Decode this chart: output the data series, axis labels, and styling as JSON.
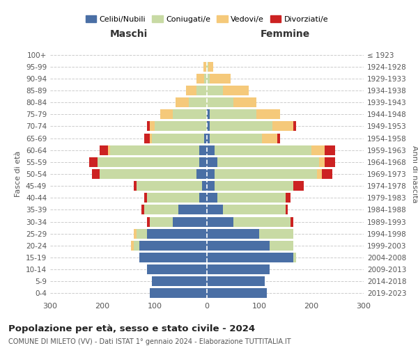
{
  "age_groups": [
    "0-4",
    "5-9",
    "10-14",
    "15-19",
    "20-24",
    "25-29",
    "30-34",
    "35-39",
    "40-44",
    "45-49",
    "50-54",
    "55-59",
    "60-64",
    "65-69",
    "70-74",
    "75-79",
    "80-84",
    "85-89",
    "90-94",
    "95-99",
    "100+"
  ],
  "birth_years": [
    "2019-2023",
    "2014-2018",
    "2009-2013",
    "2004-2008",
    "1999-2003",
    "1994-1998",
    "1989-1993",
    "1984-1988",
    "1979-1983",
    "1974-1978",
    "1969-1973",
    "1964-1968",
    "1959-1963",
    "1954-1958",
    "1949-1953",
    "1944-1948",
    "1939-1943",
    "1934-1938",
    "1929-1933",
    "1924-1928",
    "≤ 1923"
  ],
  "males": {
    "celibe": [
      110,
      105,
      115,
      130,
      130,
      115,
      65,
      55,
      15,
      10,
      20,
      15,
      15,
      5,
      0,
      0,
      0,
      0,
      0,
      0,
      0
    ],
    "coniugato": [
      0,
      0,
      0,
      0,
      10,
      20,
      45,
      65,
      100,
      125,
      185,
      195,
      170,
      100,
      100,
      65,
      35,
      20,
      5,
      2,
      0
    ],
    "vedovo": [
      0,
      0,
      0,
      0,
      5,
      5,
      0,
      0,
      0,
      0,
      0,
      0,
      5,
      5,
      10,
      25,
      25,
      20,
      15,
      5,
      0
    ],
    "divorziato": [
      0,
      0,
      0,
      0,
      0,
      0,
      5,
      5,
      5,
      5,
      15,
      15,
      15,
      10,
      5,
      0,
      0,
      0,
      0,
      0,
      0
    ]
  },
  "females": {
    "nubile": [
      115,
      110,
      120,
      165,
      120,
      100,
      50,
      30,
      20,
      15,
      15,
      20,
      15,
      5,
      5,
      5,
      0,
      0,
      0,
      0,
      0
    ],
    "coniugata": [
      0,
      0,
      0,
      5,
      45,
      65,
      110,
      120,
      130,
      150,
      195,
      195,
      185,
      100,
      120,
      90,
      50,
      30,
      5,
      2,
      0
    ],
    "vedova": [
      0,
      0,
      0,
      0,
      0,
      0,
      0,
      0,
      0,
      0,
      10,
      10,
      25,
      30,
      40,
      45,
      45,
      50,
      40,
      10,
      0
    ],
    "divorziata": [
      0,
      0,
      0,
      0,
      0,
      0,
      5,
      5,
      10,
      20,
      20,
      20,
      20,
      5,
      5,
      0,
      0,
      0,
      0,
      0,
      0
    ]
  },
  "colors": {
    "celibe": "#4a6fa5",
    "coniugato": "#c8daa4",
    "vedovo": "#f5c97a",
    "divorziato": "#cc2222"
  },
  "legend_labels": [
    "Celibi/Nubili",
    "Coniugati/e",
    "Vedovi/e",
    "Divorziati/e"
  ],
  "xlim": 300,
  "title": "Popolazione per età, sesso e stato civile - 2024",
  "subtitle": "COMUNE DI MILETO (VV) - Dati ISTAT 1° gennaio 2024 - Elaborazione TUTTITALIA.IT",
  "xlabel_left": "Maschi",
  "xlabel_right": "Femmine",
  "ylabel_left": "Fasce di età",
  "ylabel_right": "Anni di nascita",
  "background_color": "#ffffff",
  "grid_color": "#cccccc"
}
